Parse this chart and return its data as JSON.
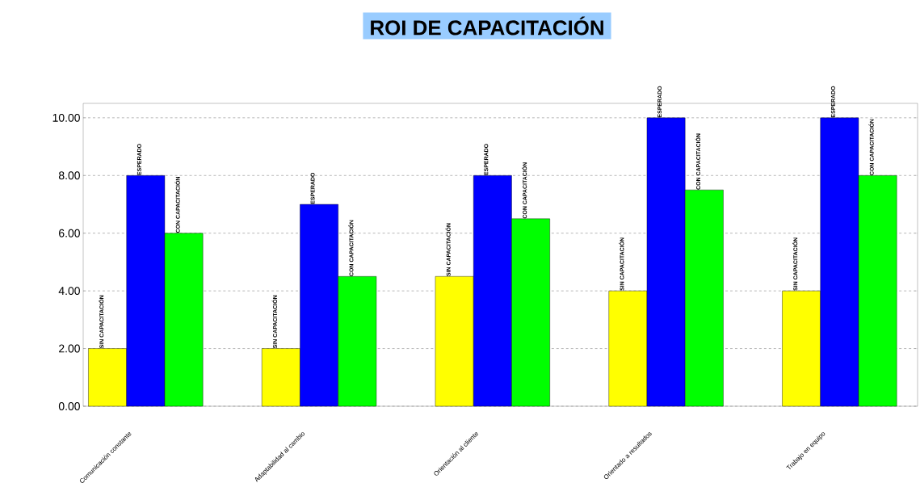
{
  "chart_data": {
    "type": "bar",
    "title": "ROI DE CAPACITACIÓN",
    "categories": [
      "Comunicación constante",
      "Adaptabilidad al cambio",
      "Orientación al cliente",
      "Orientado a resultados",
      "Trabajo en equipo"
    ],
    "series": [
      {
        "name": "SIN CAPACITACIÓN",
        "color": "#ffff00",
        "values": [
          2,
          2,
          4.5,
          4,
          4
        ]
      },
      {
        "name": "ESPERADO",
        "color": "#0000ff",
        "values": [
          8,
          7,
          8,
          10,
          10
        ]
      },
      {
        "name": "CON CAPACITACIÓN",
        "color": "#00ff00",
        "values": [
          6,
          4.5,
          6.5,
          7.5,
          8
        ]
      }
    ],
    "ylim": [
      0,
      10.5
    ],
    "yticks": [
      {
        "value": 0,
        "label": "0.00"
      },
      {
        "value": 2,
        "label": "2.00"
      },
      {
        "value": 4,
        "label": "4.00"
      },
      {
        "value": 6,
        "label": "6.00"
      },
      {
        "value": 8,
        "label": "8.00"
      },
      {
        "value": 10,
        "label": "10.00"
      }
    ],
    "grid": "y",
    "legend": false
  }
}
